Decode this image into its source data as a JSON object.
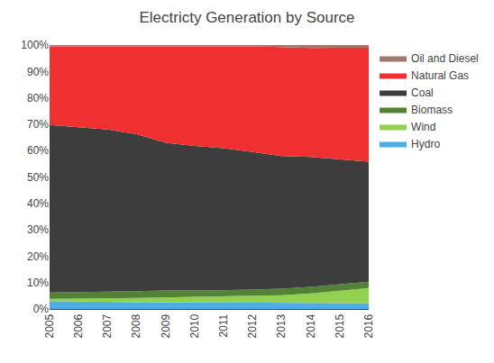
{
  "chart_data": {
    "type": "area",
    "title": "Electricty Generation by Source",
    "stacked": true,
    "x": [
      2005,
      2006,
      2007,
      2008,
      2009,
      2010,
      2011,
      2012,
      2013,
      2014,
      2015,
      2016
    ],
    "series": [
      {
        "name": "Hydro",
        "color": "#4baee8",
        "values": [
          0.03,
          0.028,
          0.027,
          0.026,
          0.026,
          0.025,
          0.024,
          0.023,
          0.022,
          0.021,
          0.021,
          0.021
        ]
      },
      {
        "name": "Wind",
        "color": "#92d050",
        "values": [
          0.008,
          0.01,
          0.013,
          0.016,
          0.018,
          0.02,
          0.022,
          0.025,
          0.03,
          0.038,
          0.048,
          0.058
        ]
      },
      {
        "name": "Biomass",
        "color": "#538135",
        "values": [
          0.024,
          0.025,
          0.025,
          0.025,
          0.026,
          0.025,
          0.025,
          0.025,
          0.025,
          0.025,
          0.024,
          0.024
        ]
      },
      {
        "name": "Coal",
        "color": "#3d3d3d",
        "values": [
          0.635,
          0.625,
          0.615,
          0.595,
          0.56,
          0.548,
          0.538,
          0.522,
          0.502,
          0.492,
          0.475,
          0.455
        ]
      },
      {
        "name": "Natural Gas",
        "color": "#f03030",
        "values": [
          0.298,
          0.307,
          0.315,
          0.333,
          0.365,
          0.377,
          0.386,
          0.4,
          0.413,
          0.413,
          0.422,
          0.432
        ]
      },
      {
        "name": "Oil and Diesel",
        "color": "#a0796a",
        "values": [
          0.005,
          0.005,
          0.005,
          0.005,
          0.005,
          0.005,
          0.005,
          0.005,
          0.008,
          0.011,
          0.01,
          0.01
        ]
      }
    ],
    "xlim": [
      2005,
      2016
    ],
    "xticks": [
      2005,
      2006,
      2007,
      2008,
      2009,
      2010,
      2011,
      2012,
      2013,
      2014,
      2015,
      2016
    ],
    "ylim": [
      0,
      1.0
    ],
    "yticks": [
      {
        "value": 0,
        "label": "0%"
      },
      {
        "value": 0.1,
        "label": "10%"
      },
      {
        "value": 0.2,
        "label": "20%"
      },
      {
        "value": 0.3,
        "label": "30%"
      },
      {
        "value": 0.4,
        "label": "40%"
      },
      {
        "value": 0.5,
        "label": "50%"
      },
      {
        "value": 0.6,
        "label": "60%"
      },
      {
        "value": 0.7,
        "label": "70%"
      },
      {
        "value": 0.8,
        "label": "80%"
      },
      {
        "value": 0.9,
        "label": "90%"
      },
      {
        "value": 1.0,
        "label": "100%"
      }
    ],
    "grid": true,
    "legend": "right"
  }
}
